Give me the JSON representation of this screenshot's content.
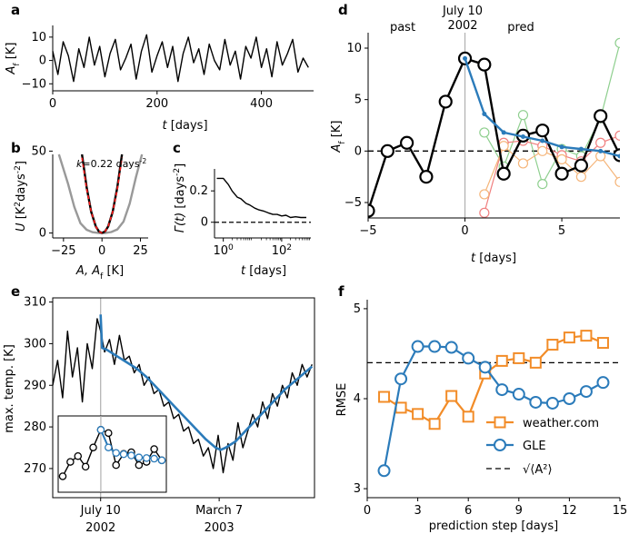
{
  "chart_data": [
    {
      "panel": "a",
      "type": "line",
      "xlabel_var": "t",
      "xlabel_unit": "[days]",
      "ylabel_var": "A",
      "ylabel_sub": "f",
      "ylabel_unit": "[K]",
      "xlim": [
        0,
        500
      ],
      "ylim": [
        -13,
        15
      ],
      "xticks": [
        0,
        200,
        400
      ],
      "yticks": [
        -10,
        0,
        10
      ],
      "colors": {
        "line": "#000000"
      },
      "series": [
        {
          "x": [
            0,
            10,
            20,
            30,
            40,
            50,
            60,
            70,
            80,
            90,
            100,
            110,
            120,
            130,
            140,
            150,
            160,
            170,
            180,
            190,
            200,
            210,
            220,
            230,
            240,
            250,
            260,
            270,
            280,
            290,
            300,
            310,
            320,
            330,
            340,
            350,
            360,
            370,
            380,
            390,
            400,
            410,
            420,
            430,
            440,
            450,
            460,
            470,
            480,
            490
          ],
          "values": [
            4,
            -6,
            8,
            2,
            -9,
            5,
            -3,
            10,
            -2,
            6,
            -7,
            3,
            9,
            -4,
            1,
            7,
            -8,
            4,
            11,
            -5,
            2,
            8,
            -3,
            6,
            -9,
            3,
            10,
            -1,
            5,
            -6,
            7,
            0,
            -4,
            9,
            -2,
            4,
            -8,
            6,
            1,
            10,
            -3,
            5,
            -7,
            8,
            -2,
            3,
            9,
            -5,
            1,
            -3
          ]
        }
      ]
    },
    {
      "panel": "b",
      "type": "line",
      "annotation_var": "k",
      "annotation_value": "=0.22 days",
      "annotation_exp": "-2",
      "xlabel_parts": [
        "A, A",
        "f",
        " [K]"
      ],
      "ylabel_var": "U",
      "ylabel_unit": "[K",
      "ylabel_exp1": "2",
      "ylabel_mid": "days",
      "ylabel_exp2": "-2",
      "ylabel_close": "]",
      "xlim": [
        -32,
        30
      ],
      "ylim": [
        -3,
        48
      ],
      "xticks": [
        -25,
        0,
        25
      ],
      "yticks": [
        0,
        50
      ],
      "colors": {
        "gray": "#999999",
        "black": "#000000",
        "red": "#ff1a1a"
      },
      "series": [
        {
          "style": "gray",
          "x": [
            -28,
            -22,
            -18,
            -14,
            -10,
            -6,
            -2,
            0,
            2,
            6,
            10,
            14,
            18,
            22,
            26
          ],
          "values": [
            48,
            30,
            16,
            6,
            2,
            0.5,
            0,
            0,
            0,
            0.6,
            2.2,
            7,
            18,
            34,
            48
          ]
        },
        {
          "style": "black",
          "x": [
            -13,
            -10,
            -7,
            -4,
            -2,
            0,
            2,
            4,
            7,
            10,
            13
          ],
          "values": [
            48,
            28,
            13,
            4,
            1,
            0,
            1,
            4,
            13,
            28,
            48
          ]
        },
        {
          "style": "red",
          "x": [
            -13,
            -10,
            -7,
            -4,
            -2,
            0,
            2,
            4,
            7,
            10,
            13
          ],
          "values": [
            46,
            27,
            13,
            4,
            1,
            0,
            1,
            4,
            13,
            27,
            46
          ]
        }
      ]
    },
    {
      "panel": "c",
      "type": "line",
      "log_x": true,
      "xlabel_var": "t",
      "xlabel_unit": "[days]",
      "ylabel_var": "Γ(t)",
      "ylabel_unit": "[days",
      "ylabel_exp": "-2",
      "ylabel_close": "]",
      "xlim": [
        0.5,
        1000
      ],
      "ylim": [
        -0.1,
        0.34
      ],
      "xtick_labels": [
        {
          "v": 1,
          "base": "10",
          "exp": "0"
        },
        {
          "v": 100,
          "base": "10",
          "exp": "2"
        }
      ],
      "yticks": [
        0,
        0.2
      ],
      "colors": {
        "line": "#000000"
      },
      "series": [
        {
          "x": [
            0.6,
            1,
            1.5,
            2,
            3,
            4,
            6,
            8,
            12,
            16,
            25,
            35,
            50,
            70,
            100,
            140,
            200,
            300,
            450,
            700
          ],
          "values": [
            0.28,
            0.28,
            0.24,
            0.2,
            0.16,
            0.15,
            0.12,
            0.11,
            0.09,
            0.08,
            0.07,
            0.06,
            0.05,
            0.05,
            0.04,
            0.045,
            0.03,
            0.035,
            0.03,
            0.03
          ]
        }
      ]
    },
    {
      "panel": "d",
      "type": "line",
      "xlabel_var": "t",
      "xlabel_unit": "[days]",
      "ylabel_var": "A",
      "ylabel_sub": "f",
      "ylabel_unit": "[K]",
      "xlim": [
        -5,
        8
      ],
      "ylim": [
        -6.5,
        11.5
      ],
      "xticks": [
        -5,
        0,
        5
      ],
      "yticks": [
        -5,
        0,
        5,
        10
      ],
      "annotations": {
        "past": "past",
        "date1": "July 10",
        "date2": "2002",
        "pred": "pred"
      },
      "colors": {
        "black": "#000000",
        "blue": "#2b7bba",
        "green": "#8fcf8f",
        "red": "#f08080",
        "orange": "#f5b57a",
        "gray": "#b0b0b0"
      },
      "series": [
        {
          "name": "",
          "style": "green",
          "x": [
            1,
            2,
            3,
            4,
            5,
            6,
            7,
            8
          ],
          "values": [
            1.8,
            -1.5,
            3.5,
            -3.2,
            0.2,
            -0.5,
            3.2,
            10.5
          ]
        },
        {
          "name": "",
          "style": "red",
          "x": [
            1,
            2,
            3,
            4,
            5,
            6,
            7,
            8
          ],
          "values": [
            -6,
            0.8,
            1,
            0.5,
            -0.4,
            -1,
            0.8,
            1.5
          ]
        },
        {
          "name": "",
          "style": "orange",
          "x": [
            1,
            2,
            3,
            4,
            5,
            6,
            7,
            8
          ],
          "values": [
            -4.2,
            0.5,
            -1.2,
            0,
            -0.8,
            -2.5,
            -0.5,
            -3
          ]
        },
        {
          "name": "",
          "style": "black",
          "x": [
            -5,
            -4,
            -3,
            -2,
            -1,
            0,
            1,
            2,
            3,
            4,
            5,
            6,
            7,
            8
          ],
          "values": [
            -5.8,
            0,
            0.8,
            -2.5,
            4.8,
            9,
            8.4,
            -2.2,
            1.5,
            2,
            -2.2,
            -1.4,
            3.4,
            -0.4
          ]
        },
        {
          "name": "",
          "style": "blue",
          "x": [
            0,
            1,
            2,
            3,
            4,
            5,
            6,
            7,
            8
          ],
          "values": [
            9,
            3.6,
            1.8,
            1.4,
            1,
            0.4,
            0.2,
            0,
            -0.5
          ]
        }
      ]
    },
    {
      "panel": "e",
      "type": "line",
      "ylabel": "max. temp. [K]",
      "xlim": [
        0,
        530
      ],
      "ylim": [
        263,
        311
      ],
      "yticks": [
        270,
        280,
        290,
        300,
        310
      ],
      "xtick_labels": [
        {
          "v": 97,
          "l1": "July 10",
          "l2": "2002"
        },
        {
          "v": 337,
          "l1": "March 7",
          "l2": "2003"
        }
      ],
      "colors": {
        "black": "#000000",
        "blue": "#2b7bba",
        "gray": "#b0b0b0"
      },
      "series": [
        {
          "style": "black",
          "x": [
            0,
            10,
            20,
            30,
            40,
            50,
            60,
            70,
            80,
            90,
            97,
            105,
            115,
            125,
            135,
            145,
            155,
            165,
            175,
            185,
            195,
            205,
            215,
            225,
            235,
            245,
            255,
            265,
            275,
            285,
            295,
            305,
            315,
            325,
            335,
            345,
            355,
            365,
            375,
            385,
            395,
            405,
            415,
            425,
            435,
            445,
            455,
            465,
            475,
            485,
            495,
            505,
            515,
            525
          ],
          "values": [
            290,
            296,
            287,
            303,
            292,
            299,
            286,
            300,
            294,
            306,
            303,
            298,
            301,
            295,
            302,
            296,
            297,
            293,
            295,
            290,
            292,
            288,
            289,
            285,
            286,
            282,
            283,
            279,
            280,
            276,
            277,
            273,
            275,
            270,
            278,
            269,
            276,
            272,
            281,
            275,
            279,
            283,
            280,
            286,
            282,
            288,
            285,
            290,
            287,
            293,
            290,
            295,
            292,
            295
          ]
        },
        {
          "style": "blue",
          "x": [
            97,
            100,
            110,
            130,
            150,
            170,
            190,
            210,
            230,
            250,
            270,
            290,
            310,
            330,
            340,
            350,
            370,
            390,
            410,
            430,
            450,
            470,
            490,
            510,
            525
          ],
          "values": [
            307,
            299,
            298.5,
            297,
            295.5,
            294,
            292,
            289.5,
            287,
            284.5,
            282,
            279.5,
            277,
            275,
            274.5,
            275,
            276.5,
            279,
            281.5,
            284,
            286.5,
            289,
            291,
            293,
            294.5
          ]
        }
      ],
      "inset": {
        "colors": {
          "black": "#000000",
          "blue": "#2b7bba"
        },
        "black": [
          -5.5,
          -1,
          0.8,
          -2.5,
          3.5,
          9,
          8,
          -2,
          1.5,
          2,
          -2,
          -1,
          3,
          -0.5
        ],
        "blue_start": 5,
        "blue": [
          9,
          3.5,
          1.8,
          1.4,
          1,
          0.4,
          0.2,
          0,
          -0.5
        ]
      }
    },
    {
      "panel": "f",
      "type": "line",
      "xlabel": "prediction step [days]",
      "ylabel": "RMSE",
      "xlim": [
        0,
        15
      ],
      "ylim": [
        2.9,
        5.1
      ],
      "xticks": [
        0,
        3,
        6,
        9,
        12,
        15
      ],
      "yticks": [
        3,
        4,
        5
      ],
      "colors": {
        "orange": "#f28c28",
        "blue": "#2b7bba",
        "black": "#000000"
      },
      "series": [
        {
          "name": "weather.com",
          "style": "orange",
          "x": [
            1,
            2,
            3,
            4,
            5,
            6,
            7,
            8,
            9,
            10,
            11,
            12,
            13,
            14
          ],
          "values": [
            4.02,
            3.9,
            3.83,
            3.72,
            4.03,
            3.8,
            4.28,
            4.42,
            4.45,
            4.4,
            4.6,
            4.68,
            4.7,
            4.62
          ]
        },
        {
          "name": "GLE",
          "style": "blue",
          "x": [
            1,
            2,
            3,
            4,
            5,
            6,
            7,
            8,
            9,
            10,
            11,
            12,
            13,
            14
          ],
          "values": [
            3.2,
            4.22,
            4.58,
            4.58,
            4.57,
            4.45,
            4.35,
            4.1,
            4.05,
            3.96,
            3.95,
            4,
            4.08,
            4.18
          ]
        }
      ],
      "reference_y": 4.4,
      "reference_label": "√⟨A²⟩"
    }
  ]
}
